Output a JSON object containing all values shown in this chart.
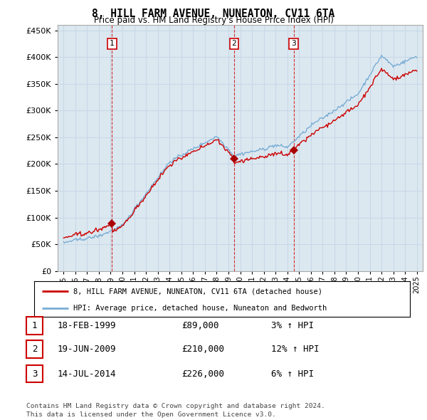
{
  "title": "8, HILL FARM AVENUE, NUNEATON, CV11 6TA",
  "subtitle": "Price paid vs. HM Land Registry's House Price Index (HPI)",
  "ylim": [
    0,
    460000
  ],
  "yticks": [
    0,
    50000,
    100000,
    150000,
    200000,
    250000,
    300000,
    350000,
    400000,
    450000
  ],
  "xlabel_years": [
    "1995",
    "1996",
    "1997",
    "1998",
    "1999",
    "2000",
    "2001",
    "2002",
    "2003",
    "2004",
    "2005",
    "2006",
    "2007",
    "2008",
    "2009",
    "2010",
    "2011",
    "2012",
    "2013",
    "2014",
    "2015",
    "2016",
    "2017",
    "2018",
    "2019",
    "2020",
    "2021",
    "2022",
    "2023",
    "2024",
    "2025"
  ],
  "sale_marker_color": "#aa0000",
  "hpi_line_color": "#7aadd4",
  "sale_line_color": "#cc0000",
  "grid_color": "#c8d8e8",
  "chart_bg_color": "#dce8f0",
  "background_color": "#ffffff",
  "vline_color": "#cc0000",
  "transactions": [
    {
      "date_num": 1999.12,
      "price": 89000,
      "label": "1"
    },
    {
      "date_num": 2009.47,
      "price": 210000,
      "label": "2"
    },
    {
      "date_num": 2014.54,
      "price": 226000,
      "label": "3"
    }
  ],
  "legend_entries": [
    "8, HILL FARM AVENUE, NUNEATON, CV11 6TA (detached house)",
    "HPI: Average price, detached house, Nuneaton and Bedworth"
  ],
  "table_rows": [
    {
      "num": "1",
      "date": "18-FEB-1999",
      "price": "£89,000",
      "hpi": "3% ↑ HPI"
    },
    {
      "num": "2",
      "date": "19-JUN-2009",
      "price": "£210,000",
      "hpi": "12% ↑ HPI"
    },
    {
      "num": "3",
      "date": "14-JUL-2014",
      "price": "£226,000",
      "hpi": "6% ↑ HPI"
    }
  ],
  "footnote": "Contains HM Land Registry data © Crown copyright and database right 2024.\nThis data is licensed under the Open Government Licence v3.0."
}
